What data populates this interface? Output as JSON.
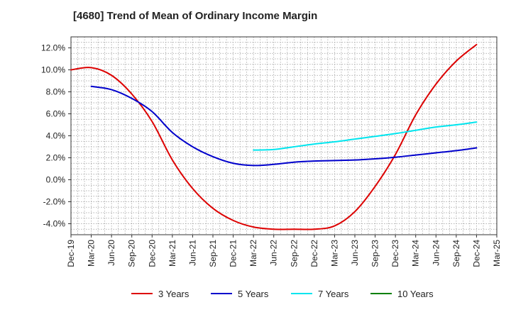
{
  "chart_data": {
    "type": "line",
    "title": "[4680]  Trend of Mean of Ordinary Income Margin",
    "xlabel": "",
    "ylabel": "",
    "x_ticks": [
      "Dec-19",
      "Mar-20",
      "Jun-20",
      "Sep-20",
      "Dec-20",
      "Mar-21",
      "Jun-21",
      "Sep-21",
      "Dec-21",
      "Mar-22",
      "Jun-22",
      "Sep-22",
      "Dec-22",
      "Mar-23",
      "Jun-23",
      "Sep-23",
      "Dec-23",
      "Mar-24",
      "Jun-24",
      "Sep-24",
      "Dec-24",
      "Mar-25"
    ],
    "y_ticks": [
      "-4.0%",
      "-2.0%",
      "0.0%",
      "2.0%",
      "4.0%",
      "6.0%",
      "8.0%",
      "10.0%",
      "12.0%"
    ],
    "ylim": [
      -5.0,
      13.0
    ],
    "grid": true,
    "legend_position": "bottom",
    "series": [
      {
        "name": "3 Years",
        "color": "#dd0000",
        "x": [
          "Dec-19",
          "Mar-20",
          "Jun-20",
          "Sep-20",
          "Dec-20",
          "Mar-21",
          "Jun-21",
          "Sep-21",
          "Dec-21",
          "Mar-22",
          "Jun-22",
          "Sep-22",
          "Dec-22",
          "Mar-23",
          "Jun-23",
          "Sep-23",
          "Dec-23",
          "Mar-24",
          "Jun-24",
          "Sep-24",
          "Dec-24"
        ],
        "values": [
          10.0,
          10.2,
          9.5,
          7.8,
          5.3,
          1.8,
          -0.8,
          -2.6,
          -3.7,
          -4.3,
          -4.5,
          -4.5,
          -4.5,
          -4.2,
          -2.9,
          -0.6,
          2.3,
          5.9,
          8.7,
          10.8,
          12.3
        ]
      },
      {
        "name": "5 Years",
        "color": "#0000cc",
        "x": [
          "Dec-19",
          "Mar-20",
          "Jun-20",
          "Sep-20",
          "Dec-20",
          "Mar-21",
          "Jun-21",
          "Sep-21",
          "Dec-21",
          "Mar-22",
          "Jun-22",
          "Sep-22",
          "Dec-22",
          "Mar-23",
          "Jun-23",
          "Sep-23",
          "Dec-23",
          "Mar-24",
          "Jun-24",
          "Sep-24",
          "Dec-24"
        ],
        "values": [
          null,
          8.5,
          8.2,
          7.4,
          6.2,
          4.3,
          3.0,
          2.1,
          1.5,
          1.3,
          1.4,
          1.6,
          1.7,
          1.75,
          1.8,
          1.9,
          2.05,
          2.25,
          2.45,
          2.65,
          2.9
        ]
      },
      {
        "name": "7 Years",
        "color": "#00e5ee",
        "x": [
          "Dec-19",
          "Mar-20",
          "Jun-20",
          "Sep-20",
          "Dec-20",
          "Mar-21",
          "Jun-21",
          "Sep-21",
          "Dec-21",
          "Mar-22",
          "Jun-22",
          "Sep-22",
          "Dec-22",
          "Mar-23",
          "Jun-23",
          "Sep-23",
          "Dec-23",
          "Mar-24",
          "Jun-24",
          "Sep-24",
          "Dec-24"
        ],
        "values": [
          null,
          null,
          null,
          null,
          null,
          null,
          null,
          null,
          null,
          2.7,
          2.75,
          3.0,
          3.25,
          3.45,
          3.7,
          3.95,
          4.2,
          4.5,
          4.8,
          5.0,
          5.25
        ]
      },
      {
        "name": "10 Years",
        "color": "#008000",
        "x": [],
        "values": []
      }
    ]
  }
}
